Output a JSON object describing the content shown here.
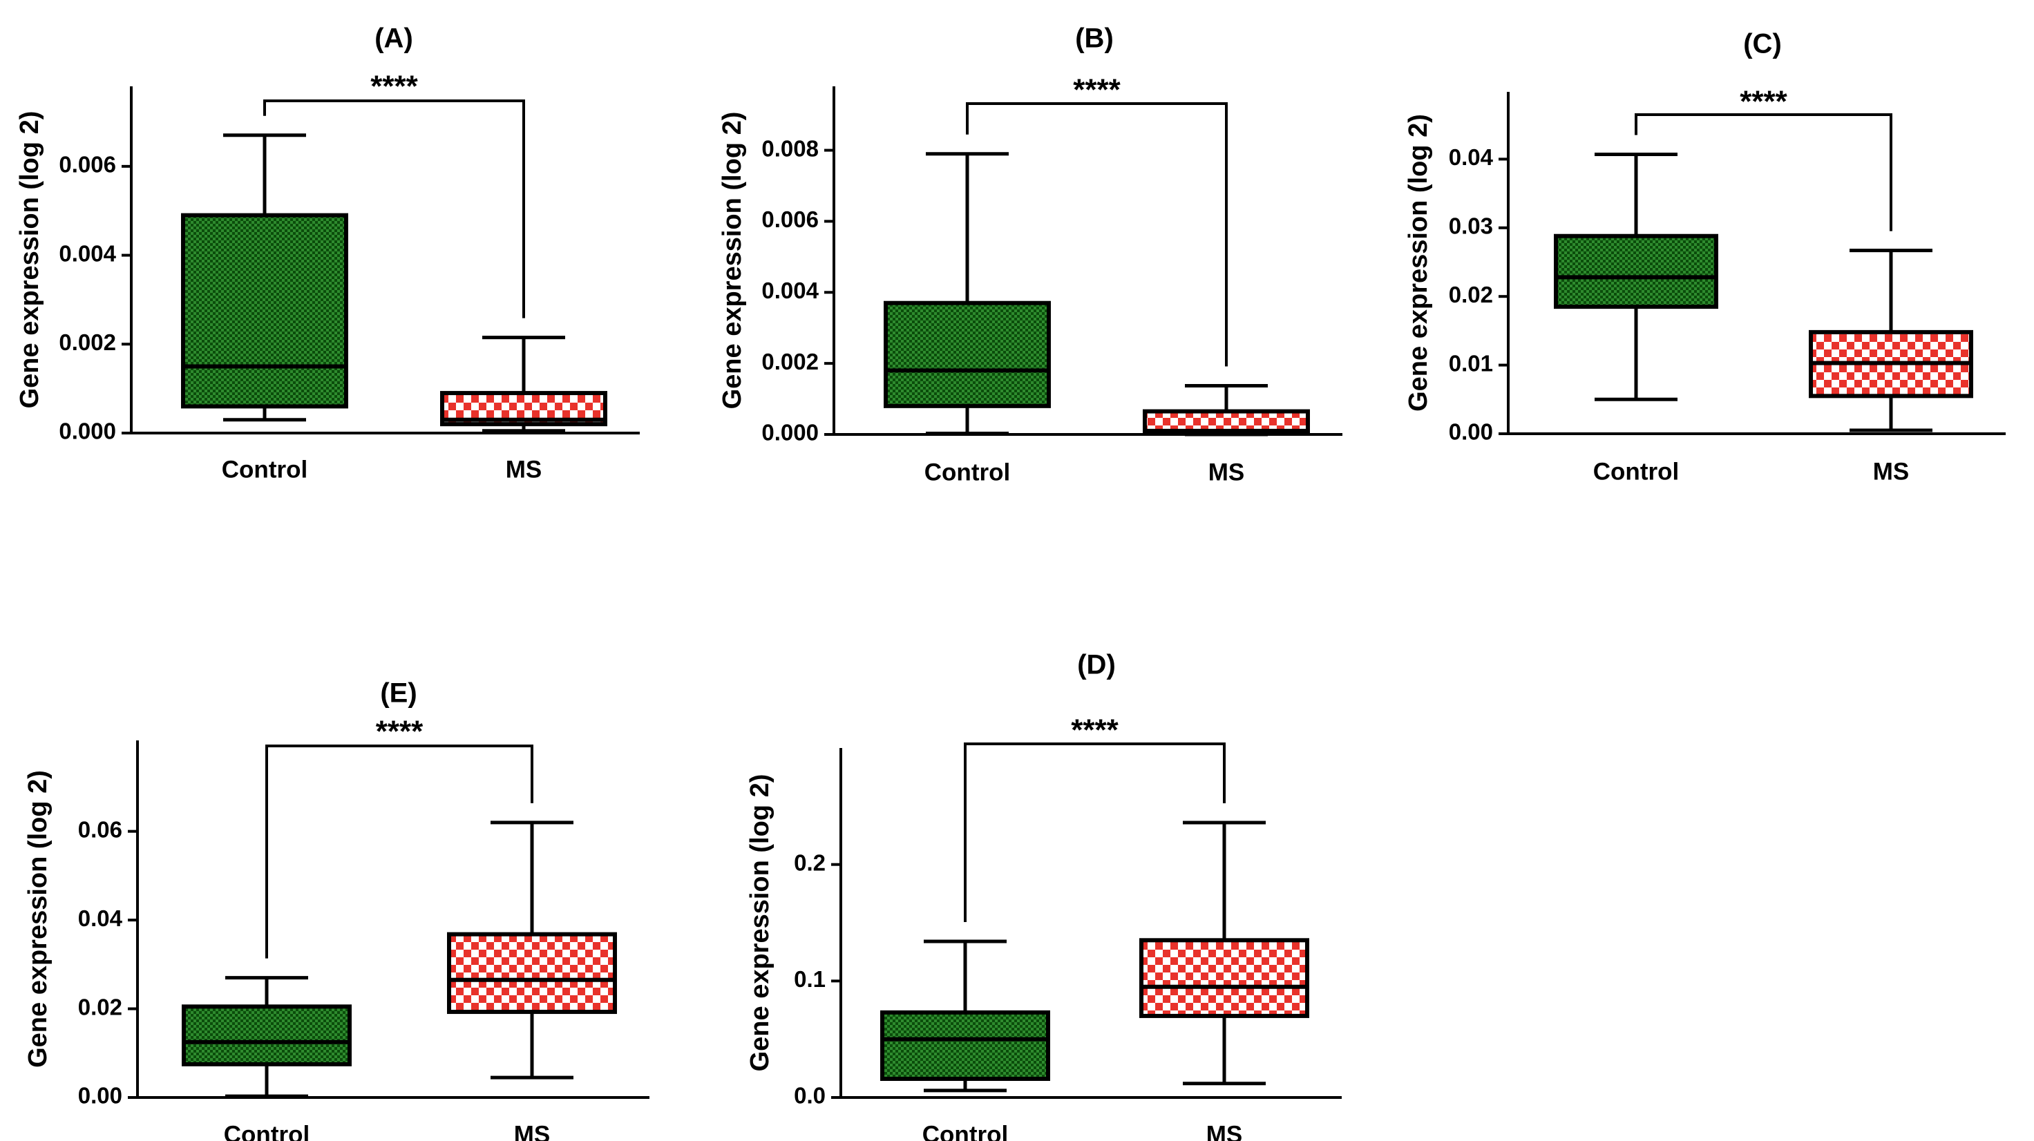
{
  "figure": {
    "colors": {
      "control_fill": "#2e8b2e",
      "control_fill_dark": "#0b4d0b",
      "ms_fill": "#e8322b",
      "ms_fill_light": "#ffffff",
      "stroke": "#000000"
    }
  },
  "chart_data": [
    {
      "id": "A",
      "type": "boxplot",
      "title": "(A)",
      "ylabel": "Gene expression (log 2)",
      "categories": [
        "Control",
        "MS"
      ],
      "ylim": [
        0,
        0.0078
      ],
      "yticks": [
        0,
        0.002,
        0.004,
        0.006
      ],
      "tick_labels": [
        "0.000",
        "0.002",
        "0.004",
        "0.006"
      ],
      "significance": "****",
      "boxes": [
        {
          "group": "Control",
          "min": 0.0003,
          "q1": 0.0006,
          "median": 0.0015,
          "q3": 0.0049,
          "max": 0.0067
        },
        {
          "group": "MS",
          "min": 5e-05,
          "q1": 0.0002,
          "median": 0.0003,
          "q3": 0.0009,
          "max": 0.00215
        }
      ]
    },
    {
      "id": "B",
      "type": "boxplot",
      "title": "(B)",
      "ylabel": "Gene expression (log 2)",
      "categories": [
        "Control",
        "MS"
      ],
      "ylim": [
        0,
        0.0098
      ],
      "yticks": [
        0,
        0.002,
        0.004,
        0.006,
        0.008
      ],
      "tick_labels": [
        "0.000",
        "0.002",
        "0.004",
        "0.006",
        "0.008"
      ],
      "significance": "****",
      "boxes": [
        {
          "group": "Control",
          "min": 3e-05,
          "q1": 0.0008,
          "median": 0.0018,
          "q3": 0.0037,
          "max": 0.0079
        },
        {
          "group": "MS",
          "min": 0.0,
          "q1": 5e-05,
          "median": 0.0001,
          "q3": 0.00065,
          "max": 0.00137
        }
      ]
    },
    {
      "id": "C",
      "type": "boxplot",
      "title": "(C)",
      "ylabel": "Gene expression (log 2)",
      "categories": [
        "Control",
        "MS"
      ],
      "ylim": [
        0,
        0.0498
      ],
      "yticks": [
        0,
        0.01,
        0.02,
        0.03,
        0.04
      ],
      "tick_labels": [
        "0.00",
        "0.01",
        "0.02",
        "0.03",
        "0.04"
      ],
      "significance": "****",
      "boxes": [
        {
          "group": "Control",
          "min": 0.005,
          "q1": 0.0185,
          "median": 0.0228,
          "q3": 0.0288,
          "max": 0.0407
        },
        {
          "group": "MS",
          "min": 0.0005,
          "q1": 0.0055,
          "median": 0.0103,
          "q3": 0.0148,
          "max": 0.0267
        }
      ]
    },
    {
      "id": "E",
      "type": "boxplot",
      "title": "(E)",
      "ylabel": "Gene expression (log 2)",
      "categories": [
        "Control",
        "MS"
      ],
      "ylim": [
        0,
        0.0805
      ],
      "yticks": [
        0,
        0.02,
        0.04,
        0.06
      ],
      "tick_labels": [
        "0.00",
        "0.02",
        "0.04",
        "0.06"
      ],
      "significance": "****",
      "boxes": [
        {
          "group": "Control",
          "min": 0.0003,
          "q1": 0.0075,
          "median": 0.0125,
          "q3": 0.0205,
          "max": 0.027
        },
        {
          "group": "MS",
          "min": 0.0045,
          "q1": 0.0193,
          "median": 0.0265,
          "q3": 0.0368,
          "max": 0.062
        }
      ]
    },
    {
      "id": "D",
      "type": "boxplot",
      "title": "(D)",
      "ylabel": "Gene expression (log 2)",
      "categories": [
        "Control",
        "MS"
      ],
      "ylim": [
        0,
        0.3
      ],
      "yticks": [
        0,
        0.1,
        0.2
      ],
      "tick_labels": [
        "0.0",
        "0.1",
        "0.2"
      ],
      "significance": "****",
      "boxes": [
        {
          "group": "Control",
          "min": 0.006,
          "q1": 0.016,
          "median": 0.05,
          "q3": 0.073,
          "max": 0.134
        },
        {
          "group": "MS",
          "min": 0.012,
          "q1": 0.07,
          "median": 0.095,
          "q3": 0.135,
          "max": 0.236
        }
      ]
    }
  ]
}
